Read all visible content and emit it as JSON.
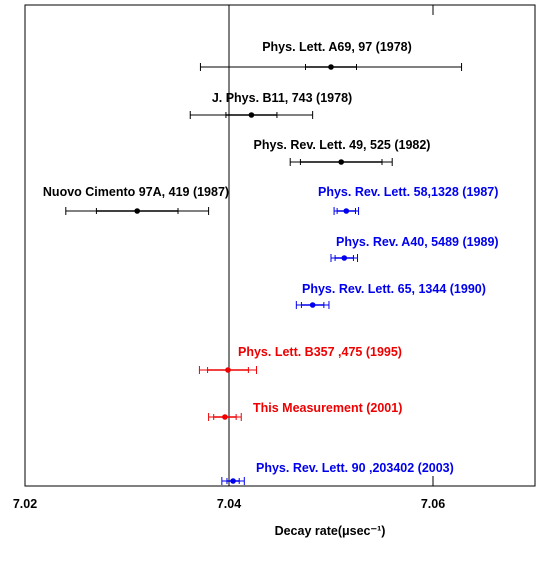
{
  "chart_data": {
    "type": "errorbar",
    "xlabel": "Decay rate(μsec⁻¹)",
    "xlim": [
      7.02,
      7.07
    ],
    "xticks": [
      7.02,
      7.04,
      7.06
    ],
    "reference_line": 7.04,
    "points": [
      {
        "label": "Phys. Lett. A69, 97 (1978)",
        "value": 7.05,
        "stat_err": 0.0025,
        "total_err": 0.0128,
        "color": "#000000"
      },
      {
        "label": "J. Phys. B11, 743 (1978)",
        "value": 7.0422,
        "stat_err": 0.0025,
        "total_err": 0.006,
        "color": "#000000"
      },
      {
        "label": "Phys. Rev. Lett. 49, 525 (1982)",
        "value": 7.051,
        "stat_err": 0.004,
        "total_err": 0.005,
        "color": "#000000"
      },
      {
        "label": "Nuovo Cimento 97A, 419 (1987)",
        "value": 7.031,
        "stat_err": 0.004,
        "total_err": 0.007,
        "color": "#000000"
      },
      {
        "label": "Phys. Rev. Lett. 58,1328 (1987)",
        "value": 7.0515,
        "stat_err": 0.0009,
        "total_err": 0.0012,
        "color": "#0000ee"
      },
      {
        "label": "Phys. Rev. A40, 5489 (1989)",
        "value": 7.0513,
        "stat_err": 0.0009,
        "total_err": 0.0013,
        "color": "#0000ee"
      },
      {
        "label": "Phys. Rev. Lett. 65, 1344 (1990)",
        "value": 7.0482,
        "stat_err": 0.0011,
        "total_err": 0.0016,
        "color": "#0000ee"
      },
      {
        "label": "Phys. Lett. B357 ,475 (1995)",
        "value": 7.0399,
        "stat_err": 0.002,
        "total_err": 0.0028,
        "color": "#ee0000"
      },
      {
        "label": "This Measurement (2001)",
        "value": 7.0396,
        "stat_err": 0.0011,
        "total_err": 0.0016,
        "color": "#ee0000"
      },
      {
        "label": "Phys. Rev. Lett. 90 ,203402 (2003)",
        "value": 7.0404,
        "stat_err": 0.0006,
        "total_err": 0.0011,
        "color": "#0000ee"
      }
    ]
  }
}
